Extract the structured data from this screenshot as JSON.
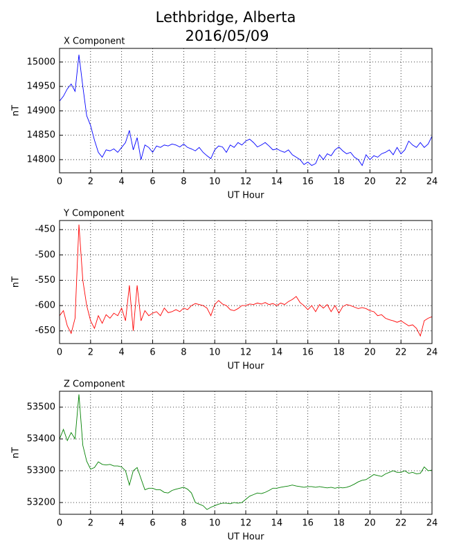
{
  "title": "Lethbridge, Alberta",
  "subtitle": "2016/05/09",
  "chart_data": [
    {
      "type": "line",
      "title": "X Component",
      "xlabel": "UT Hour",
      "ylabel": "nT",
      "color": "blue",
      "grid": true,
      "xlim": [
        0,
        24
      ],
      "xticks": [
        0,
        2,
        4,
        6,
        8,
        10,
        12,
        14,
        16,
        18,
        20,
        22,
        24
      ],
      "ylim": [
        14773,
        15028
      ],
      "yticks": [
        14800,
        14850,
        14900,
        14950,
        15000
      ],
      "x": [
        0,
        0.25,
        0.5,
        0.75,
        1,
        1.25,
        1.5,
        1.75,
        2,
        2.25,
        2.5,
        2.75,
        3,
        3.25,
        3.5,
        3.75,
        4,
        4.25,
        4.5,
        4.75,
        5,
        5.25,
        5.5,
        5.75,
        6,
        6.25,
        6.5,
        6.75,
        7,
        7.25,
        7.5,
        7.75,
        8,
        8.25,
        8.5,
        8.75,
        9,
        9.25,
        9.5,
        9.75,
        10,
        10.25,
        10.5,
        10.75,
        11,
        11.25,
        11.5,
        11.75,
        12,
        12.25,
        12.5,
        12.75,
        13,
        13.25,
        13.5,
        13.75,
        14,
        14.25,
        14.5,
        14.75,
        15,
        15.25,
        15.5,
        15.75,
        16,
        16.25,
        16.5,
        16.75,
        17,
        17.25,
        17.5,
        17.75,
        18,
        18.25,
        18.5,
        18.75,
        19,
        19.25,
        19.5,
        19.75,
        20,
        20.25,
        20.5,
        20.75,
        21,
        21.25,
        21.5,
        21.75,
        22,
        22.25,
        22.5,
        22.75,
        23,
        23.25,
        23.5,
        23.75,
        24
      ],
      "values": [
        14920,
        14930,
        14945,
        14955,
        14940,
        15015,
        14950,
        14890,
        14870,
        14840,
        14815,
        14805,
        14820,
        14818,
        14822,
        14815,
        14825,
        14835,
        14860,
        14820,
        14845,
        14800,
        14830,
        14825,
        14815,
        14828,
        14825,
        14830,
        14828,
        14832,
        14830,
        14826,
        14832,
        14825,
        14822,
        14818,
        14825,
        14815,
        14808,
        14802,
        14820,
        14828,
        14826,
        14815,
        14830,
        14825,
        14835,
        14830,
        14838,
        14842,
        14835,
        14826,
        14830,
        14835,
        14828,
        14820,
        14822,
        14818,
        14815,
        14820,
        14810,
        14805,
        14800,
        14790,
        14795,
        14788,
        14792,
        14810,
        14800,
        14812,
        14808,
        14820,
        14826,
        14818,
        14812,
        14815,
        14805,
        14800,
        14788,
        14810,
        14800,
        14808,
        14805,
        14812,
        14815,
        14820,
        14810,
        14825,
        14812,
        14820,
        14838,
        14830,
        14825,
        14835,
        14825,
        14832,
        14848
      ]
    },
    {
      "type": "line",
      "title": "Y Component",
      "xlabel": "UT Hour",
      "ylabel": "nT",
      "color": "red",
      "grid": true,
      "xlim": [
        0,
        24
      ],
      "xticks": [
        0,
        2,
        4,
        6,
        8,
        10,
        12,
        14,
        16,
        18,
        20,
        22,
        24
      ],
      "ylim": [
        -675,
        -432
      ],
      "yticks": [
        -650,
        -600,
        -550,
        -500,
        -450
      ],
      "x": [
        0,
        0.25,
        0.5,
        0.75,
        1,
        1.25,
        1.5,
        1.75,
        2,
        2.25,
        2.5,
        2.75,
        3,
        3.25,
        3.5,
        3.75,
        4,
        4.25,
        4.5,
        4.75,
        5,
        5.25,
        5.5,
        5.75,
        6,
        6.25,
        6.5,
        6.75,
        7,
        7.25,
        7.5,
        7.75,
        8,
        8.25,
        8.5,
        8.75,
        9,
        9.25,
        9.5,
        9.75,
        10,
        10.25,
        10.5,
        10.75,
        11,
        11.25,
        11.5,
        11.75,
        12,
        12.25,
        12.5,
        12.75,
        13,
        13.25,
        13.5,
        13.75,
        14,
        14.25,
        14.5,
        14.75,
        15,
        15.25,
        15.5,
        15.75,
        16,
        16.25,
        16.5,
        16.75,
        17,
        17.25,
        17.5,
        17.75,
        18,
        18.25,
        18.5,
        18.75,
        19,
        19.25,
        19.5,
        19.75,
        20,
        20.25,
        20.5,
        20.75,
        21,
        21.25,
        21.5,
        21.75,
        22,
        22.25,
        22.5,
        22.75,
        23,
        23.25,
        23.5,
        23.75,
        24
      ],
      "values": [
        -620,
        -610,
        -640,
        -655,
        -625,
        -440,
        -550,
        -600,
        -630,
        -645,
        -620,
        -635,
        -618,
        -625,
        -615,
        -620,
        -605,
        -630,
        -560,
        -650,
        -560,
        -630,
        -610,
        -620,
        -615,
        -612,
        -620,
        -605,
        -614,
        -612,
        -608,
        -612,
        -605,
        -608,
        -600,
        -596,
        -598,
        -600,
        -605,
        -620,
        -598,
        -590,
        -597,
        -600,
        -608,
        -610,
        -606,
        -600,
        -600,
        -597,
        -598,
        -595,
        -597,
        -594,
        -598,
        -596,
        -600,
        -595,
        -598,
        -592,
        -588,
        -582,
        -594,
        -600,
        -608,
        -600,
        -612,
        -598,
        -605,
        -598,
        -612,
        -600,
        -615,
        -602,
        -598,
        -600,
        -603,
        -606,
        -604,
        -606,
        -610,
        -612,
        -620,
        -618,
        -625,
        -628,
        -630,
        -633,
        -630,
        -635,
        -640,
        -638,
        -645,
        -660,
        -630,
        -625,
        -622
      ]
    },
    {
      "type": "line",
      "title": "Z Component",
      "xlabel": "UT Hour",
      "ylabel": "nT",
      "color": "green",
      "grid": true,
      "xlim": [
        0,
        24
      ],
      "xticks": [
        0,
        2,
        4,
        6,
        8,
        10,
        12,
        14,
        16,
        18,
        20,
        22,
        24
      ],
      "ylim": [
        53163,
        53550
      ],
      "yticks": [
        53200,
        53300,
        53400,
        53500
      ],
      "x": [
        0,
        0.25,
        0.5,
        0.75,
        1,
        1.25,
        1.5,
        1.75,
        2,
        2.25,
        2.5,
        2.75,
        3,
        3.25,
        3.5,
        3.75,
        4,
        4.25,
        4.5,
        4.75,
        5,
        5.25,
        5.5,
        5.75,
        6,
        6.25,
        6.5,
        6.75,
        7,
        7.25,
        7.5,
        7.75,
        8,
        8.25,
        8.5,
        8.75,
        9,
        9.25,
        9.5,
        9.75,
        10,
        10.25,
        10.5,
        10.75,
        11,
        11.25,
        11.5,
        11.75,
        12,
        12.25,
        12.5,
        12.75,
        13,
        13.25,
        13.5,
        13.75,
        14,
        14.25,
        14.5,
        14.75,
        15,
        15.25,
        15.5,
        15.75,
        16,
        16.25,
        16.5,
        16.75,
        17,
        17.25,
        17.5,
        17.75,
        18,
        18.25,
        18.5,
        18.75,
        19,
        19.25,
        19.5,
        19.75,
        20,
        20.25,
        20.5,
        20.75,
        21,
        21.25,
        21.5,
        21.75,
        22,
        22.25,
        22.5,
        22.75,
        23,
        23.25,
        23.5,
        23.75,
        24
      ],
      "values": [
        53400,
        53430,
        53395,
        53420,
        53400,
        53540,
        53380,
        53330,
        53305,
        53310,
        53328,
        53320,
        53318,
        53320,
        53315,
        53315,
        53312,
        53300,
        53255,
        53300,
        53310,
        53275,
        53240,
        53245,
        53245,
        53240,
        53240,
        53232,
        53230,
        53238,
        53242,
        53245,
        53248,
        53242,
        53230,
        53200,
        53195,
        53190,
        53178,
        53185,
        53190,
        53195,
        53198,
        53198,
        53196,
        53200,
        53198,
        53200,
        53210,
        53220,
        53225,
        53230,
        53228,
        53232,
        53238,
        53245,
        53245,
        53248,
        53250,
        53252,
        53255,
        53252,
        53250,
        53248,
        53250,
        53250,
        53248,
        53250,
        53248,
        53246,
        53248,
        53245,
        53248,
        53246,
        53248,
        53252,
        53258,
        53265,
        53270,
        53272,
        53280,
        53288,
        53285,
        53282,
        53290,
        53295,
        53300,
        53295,
        53295,
        53300,
        53292,
        53295,
        53290,
        53292,
        53312,
        53300,
        53302
      ]
    }
  ]
}
